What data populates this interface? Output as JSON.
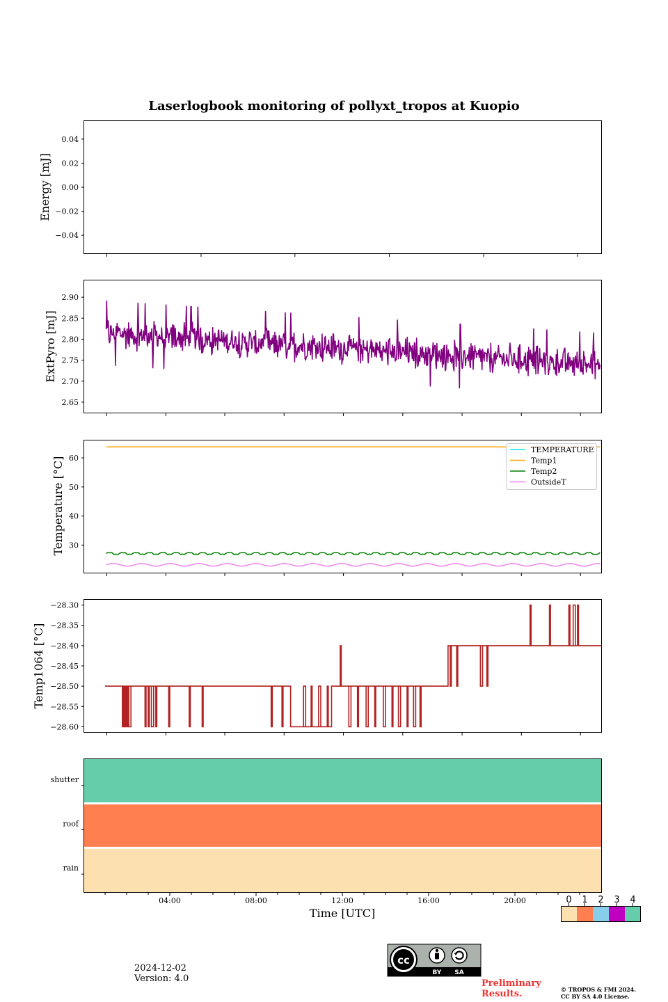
{
  "title": "Laserlogbook monitoring of pollyxt_tropos at Kuopio",
  "colors": {
    "extpyro": "#800080",
    "temperature": "#00e5ee",
    "temp1": "#ffa500",
    "temp2": "#008000",
    "outsideT": "#ee82ee",
    "temp1064": "#b22222"
  },
  "chart_data": [
    {
      "type": "line",
      "panel": "energy",
      "ylabel": "Energy [mJ]",
      "yticks": [
        "0.04",
        "0.02",
        "0.00",
        "−0.02",
        "−0.04"
      ],
      "ylim": [
        -0.055,
        0.055
      ],
      "series": []
    },
    {
      "type": "line",
      "panel": "extpyro",
      "ylabel": "ExtPyro [mJ]",
      "yticks": [
        "2.90",
        "2.85",
        "2.80",
        "2.75",
        "2.70",
        "2.65"
      ],
      "ylim": [
        2.625,
        2.94
      ],
      "x_range_hours": [
        1.05,
        23.95
      ],
      "series": [
        {
          "trend_start": 2.815,
          "trend_end": 2.738,
          "noise": 0.04,
          "min": 2.64,
          "max": 2.925
        }
      ]
    },
    {
      "type": "line",
      "panel": "temperature",
      "ylabel": "Temperature [°C]",
      "yticks": [
        "60",
        "50",
        "40",
        "30"
      ],
      "ylim": [
        20.5,
        66
      ],
      "legend": [
        "TEMPERATURE",
        "Temp1",
        "Temp2",
        "OutsideT"
      ],
      "legend_position": "top-right",
      "series": [
        {
          "key": "temp1",
          "value": 63.8
        },
        {
          "key": "temp2",
          "value": 27.1
        },
        {
          "key": "outsideT",
          "value": 23.2
        }
      ]
    },
    {
      "type": "line",
      "panel": "temp1064",
      "ylabel": "Temp1064 [°C]",
      "yticks": [
        "−28.30",
        "−28.35",
        "−28.40",
        "−28.45",
        "−28.50",
        "−28.55",
        "−28.60"
      ],
      "ylim": [
        -28.613,
        -28.287
      ],
      "segments": [
        {
          "x0": 1.0,
          "x1": 9.6,
          "value": -28.5
        },
        {
          "x0": 9.6,
          "x1": 11.5,
          "value": -28.6
        },
        {
          "x0": 11.5,
          "x1": 16.9,
          "value": -28.5
        },
        {
          "x0": 16.9,
          "x1": 24.0,
          "value": -28.4
        }
      ]
    },
    {
      "type": "heatmap",
      "panel": "flags",
      "rows": [
        "shutter",
        "roof",
        "rain"
      ],
      "row_values": [
        4,
        1,
        0
      ],
      "xlabel": "Time [UTC]",
      "xticks": [
        "04:00",
        "08:00",
        "12:00",
        "16:00",
        "20:00"
      ],
      "xtick_hours": [
        4,
        8,
        12,
        16,
        20
      ],
      "x_range_hours": [
        0,
        24
      ],
      "colorbar": {
        "labels": [
          "0",
          "1",
          "2",
          "3",
          "4"
        ],
        "colors": [
          "#fde0b0",
          "#ff7f50",
          "#87ceeb",
          "#c000c0",
          "#66cdaa"
        ]
      }
    }
  ],
  "footer": {
    "date": "2024-12-02",
    "version": "Version: 4.0",
    "preliminary_1": "Preliminary",
    "preliminary_2": "Results.",
    "copyright_1": "© TROPOS & FMI 2024.",
    "copyright_2": "CC BY SA 4.0 License.",
    "license_by": "BY",
    "license_sa": "SA"
  }
}
